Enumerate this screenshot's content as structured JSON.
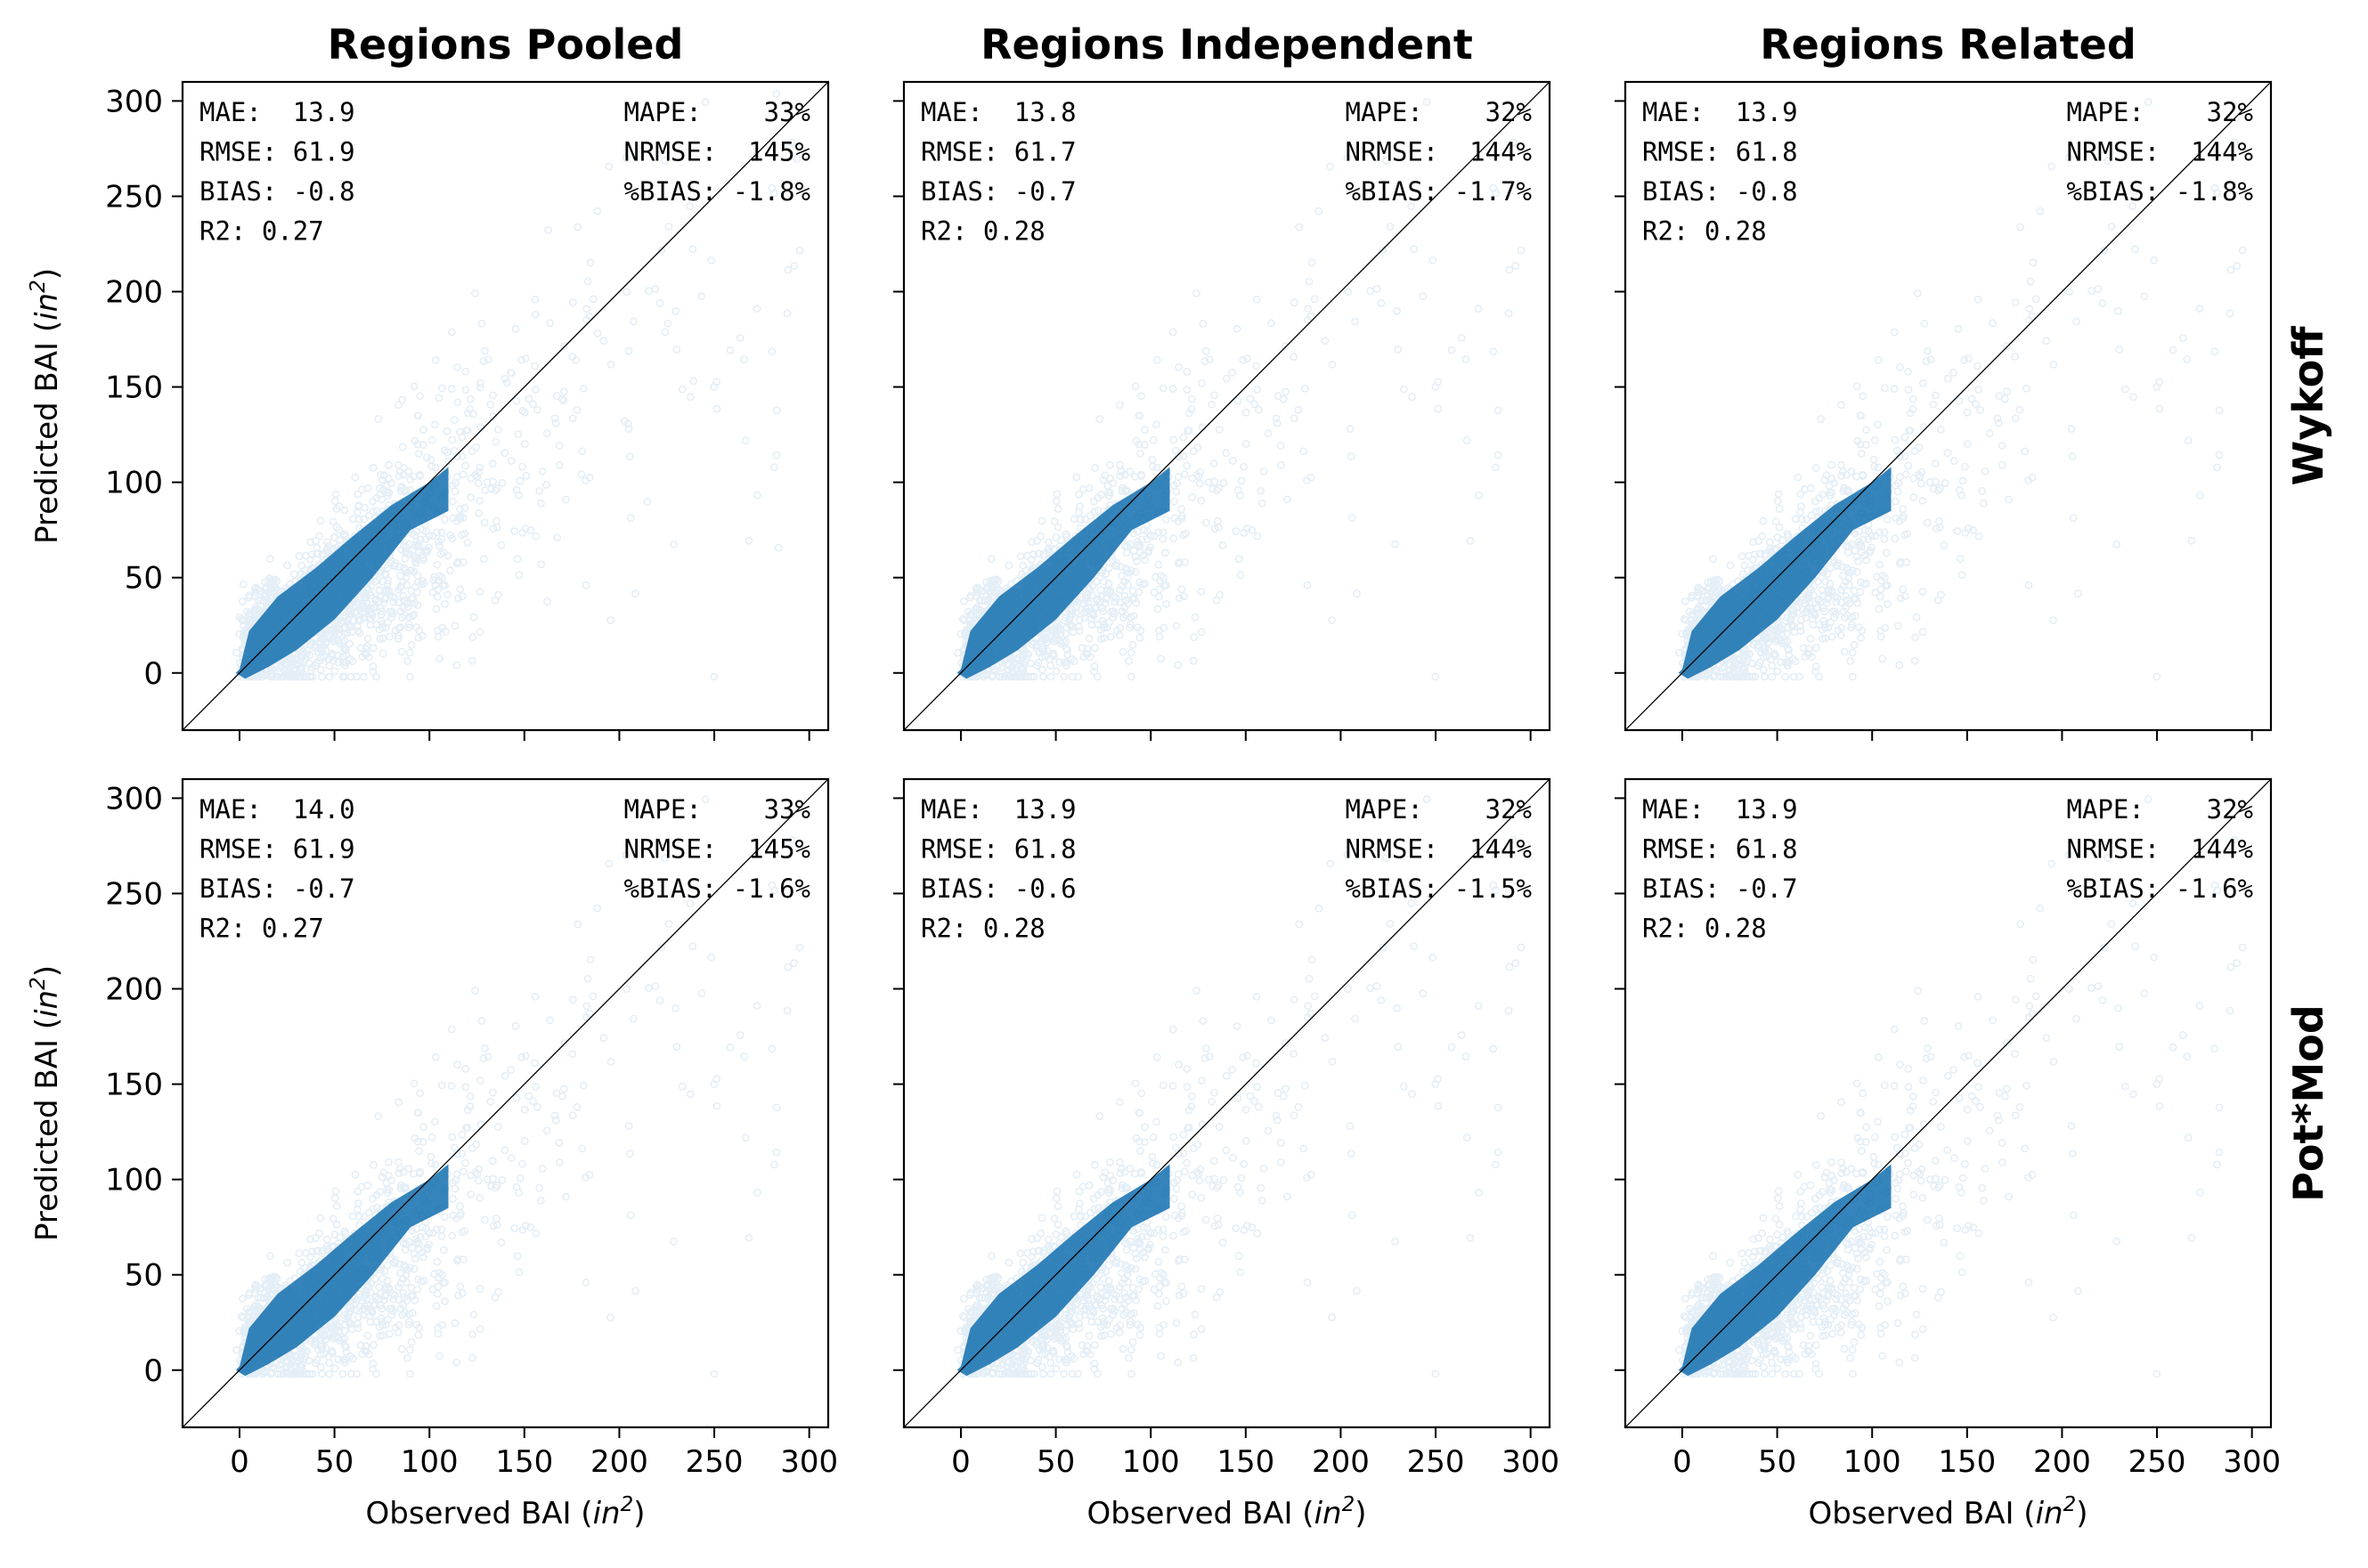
{
  "figure": {
    "columns": [
      "Regions Pooled",
      "Regions Independent",
      "Regions Related"
    ],
    "rows": [
      "Wykoff",
      "Pot*Mod"
    ],
    "xlabel": {
      "text": "Observed BAI (",
      "sym": "in",
      "sup": "2",
      "close": ")"
    },
    "ylabel": {
      "text": "Predicted BAI (",
      "sym": "in",
      "sup": "2",
      "close": ")"
    },
    "point_color": "#1f77b4"
  },
  "chart_data": {
    "type": "scatter",
    "xlim": [
      -30,
      310
    ],
    "ylim": [
      -30,
      310
    ],
    "xticks": [
      0,
      50,
      100,
      150,
      200,
      250,
      300
    ],
    "yticks": [
      0,
      50,
      100,
      150,
      200,
      250,
      300
    ],
    "reference_line": "y = x",
    "panels": [
      {
        "row": "Wykoff",
        "column": "Regions Pooled",
        "left": [
          "MAE:  13.9",
          "RMSE: 61.9",
          "BIAS: -0.8",
          "R2: 0.27"
        ],
        "right": [
          "MAPE:    33%",
          "NRMSE:  145%",
          "%BIAS: -1.8%"
        ]
      },
      {
        "row": "Wykoff",
        "column": "Regions Independent",
        "left": [
          "MAE:  13.8",
          "RMSE: 61.7",
          "BIAS: -0.7",
          "R2: 0.28"
        ],
        "right": [
          "MAPE:    32%",
          "NRMSE:  144%",
          "%BIAS: -1.7%"
        ]
      },
      {
        "row": "Wykoff",
        "column": "Regions Related",
        "left": [
          "MAE:  13.9",
          "RMSE: 61.8",
          "BIAS: -0.8",
          "R2: 0.28"
        ],
        "right": [
          "MAPE:    32%",
          "NRMSE:  144%",
          "%BIAS: -1.8%"
        ]
      },
      {
        "row": "Pot*Mod",
        "column": "Regions Pooled",
        "left": [
          "MAE:  14.0",
          "RMSE: 61.9",
          "BIAS: -0.7",
          "R2: 0.27"
        ],
        "right": [
          "MAPE:    33%",
          "NRMSE:  145%",
          "%BIAS: -1.6%"
        ]
      },
      {
        "row": "Pot*Mod",
        "column": "Regions Independent",
        "left": [
          "MAE:  13.9",
          "RMSE: 61.8",
          "BIAS: -0.6",
          "R2: 0.28"
        ],
        "right": [
          "MAPE:    32%",
          "NRMSE:  144%",
          "%BIAS: -1.5%"
        ]
      },
      {
        "row": "Pot*Mod",
        "column": "Regions Related",
        "left": [
          "MAE:  13.9",
          "RMSE: 61.8",
          "BIAS: -0.7",
          "R2: 0.28"
        ],
        "right": [
          "MAPE:    32%",
          "NRMSE:  144%",
          "%BIAS: -1.6%"
        ]
      }
    ]
  }
}
